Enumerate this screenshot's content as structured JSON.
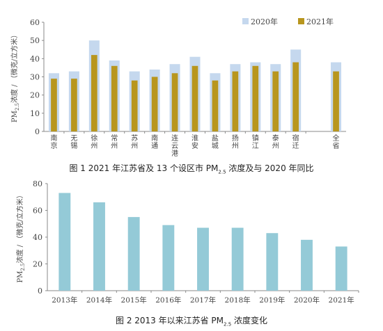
{
  "figure1": {
    "caption_prefix": "图 1   2021 年江苏省及 13 个设区市 PM",
    "caption_sub": "2.5",
    "caption_suffix": " 浓度及与 2020 年同比",
    "ylabel_prefix": "PM",
    "ylabel_sub": "2.5",
    "ylabel_suffix": "浓度 / （微克/立方米）",
    "legend": [
      "2020年",
      "2021年"
    ]
  },
  "figure2": {
    "caption_prefix": "图 2   2013 年以来江苏省 PM",
    "caption_sub": "2.5",
    "caption_suffix": " 浓度变化",
    "ylabel_prefix": "PM",
    "ylabel_sub": "2.5",
    "ylabel_suffix": "浓度 / （微克/立方米）"
  },
  "chart_data": [
    {
      "type": "bar",
      "title": "2021 年江苏省及 13 个设区市 PM2.5 浓度及与 2020 年同比",
      "ylabel": "PM2.5浓度 / （微克/立方米）",
      "categories": [
        "南京",
        "无锡",
        "徐州",
        "常州",
        "苏州",
        "南通",
        "连云港",
        "淮安",
        "盐城",
        "扬州",
        "镇江",
        "泰州",
        "宿迁",
        "全省"
      ],
      "series": [
        {
          "name": "2020年",
          "values": [
            32,
            33,
            50,
            39,
            33,
            34,
            37,
            41,
            32,
            37,
            38,
            37,
            45,
            38
          ],
          "color": "#c5d8ee"
        },
        {
          "name": "2021年",
          "values": [
            29,
            29,
            42,
            36,
            28,
            30,
            32,
            36,
            28,
            33,
            36,
            33,
            38,
            33
          ],
          "color": "#b8961e"
        }
      ],
      "ylim": [
        0,
        60
      ],
      "yticks": [
        0,
        10,
        20,
        30,
        40,
        50,
        60
      ],
      "grid": false,
      "legend_position": "top-right"
    },
    {
      "type": "bar",
      "title": "2013 年以来江苏省 PM2.5 浓度变化",
      "ylabel": "PM2.5浓度 / （微克/立方米）",
      "categories": [
        "2013年",
        "2014年",
        "2015年",
        "2016年",
        "2017年",
        "2018年",
        "2019年",
        "2020年",
        "2021年"
      ],
      "values": [
        73,
        66,
        55,
        49,
        47,
        47,
        43,
        38,
        33
      ],
      "color": "#94cad7",
      "ylim": [
        0,
        80
      ],
      "yticks": [
        0,
        20,
        40,
        60,
        80
      ],
      "grid": false
    }
  ]
}
